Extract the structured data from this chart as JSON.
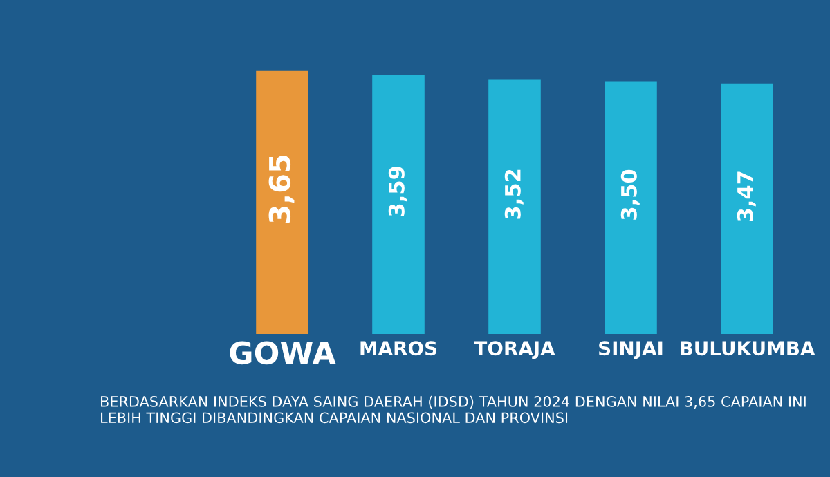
{
  "chart_data": {
    "type": "bar",
    "categories": [
      "GOWA",
      "MAROS",
      "TORAJA",
      "SINJAI",
      "BULUKUMBA"
    ],
    "values": [
      3.65,
      3.59,
      3.52,
      3.5,
      3.47
    ],
    "value_labels": [
      "3,65",
      "3,59",
      "3,52",
      "3,50",
      "3,47"
    ],
    "colors": [
      "#e8973a",
      "#22b4d6",
      "#22b4d6",
      "#22b4d6",
      "#22b4d6"
    ],
    "tick_labels": "x",
    "annotations": [
      "BERDASARKAN INDEKS DAYA SAING DAERAH (IDSD) TAHUN 2024 DENGAN NILAI 3,65 CAPAIAN INI LEBIH TINGGI DIBANDINGKAN CAPAIAN NASIONAL DAN PROVINSI"
    ]
  }
}
